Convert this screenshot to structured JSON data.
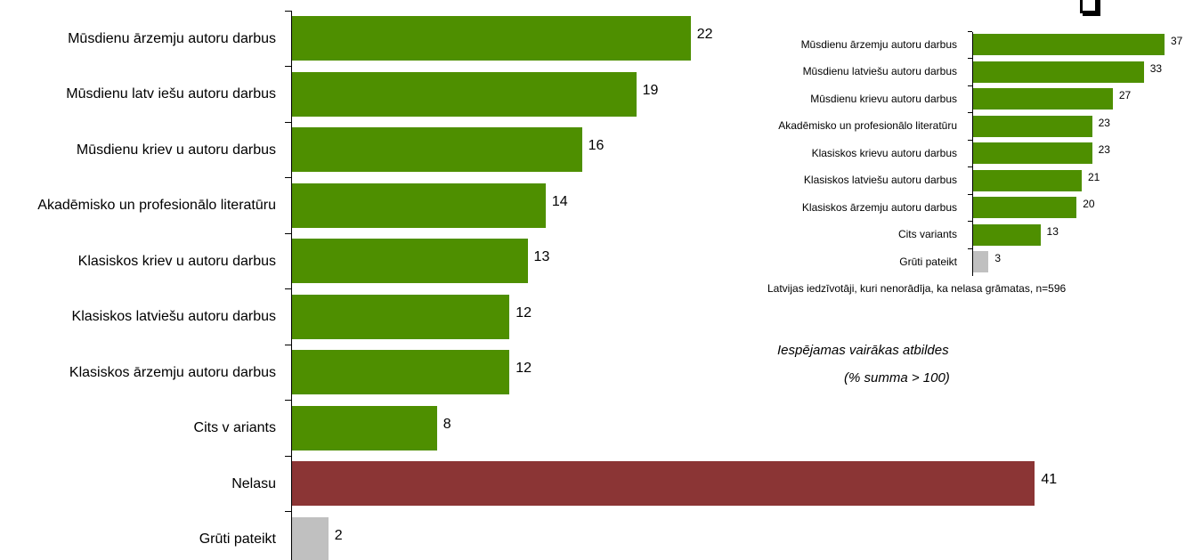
{
  "chart_data": [
    {
      "type": "bar",
      "categories": [
        "Mūsdienu ārzemju autoru darbus",
        "Mūsdienu latv iešu autoru darbus",
        "Mūsdienu kriev u autoru darbus",
        "Akadēmisko un profesionālo literatūru",
        "Klasiskos kriev u autoru darbus",
        "Klasiskos latviešu autoru darbus",
        "Klasiskos ārzemju autoru darbus",
        "Cits v ariants",
        "Nelasu",
        "Grūti pateikt"
      ],
      "values": [
        22,
        19,
        16,
        14,
        13,
        12,
        12,
        8,
        41,
        2
      ],
      "colors": [
        "#4e8f00",
        "#4e8f00",
        "#4e8f00",
        "#4e8f00",
        "#4e8f00",
        "#4e8f00",
        "#4e8f00",
        "#4e8f00",
        "#8b3535",
        "#c0c0c0"
      ],
      "annotations": [
        "Iespējamas vairākas atbildes",
        "(% summa > 100)"
      ]
    },
    {
      "type": "bar",
      "categories": [
        "Mūsdienu ārzemju autoru darbus",
        "Mūsdienu latviešu autoru darbus",
        "Mūsdienu krievu autoru darbus",
        "Akadēmisko un profesionālo literatūru",
        "Klasiskos krievu autoru darbus",
        "Klasiskos latviešu autoru darbus",
        "Klasiskos ārzemju autoru darbus",
        "Cits variants",
        "Grūti pateikt"
      ],
      "values": [
        37,
        33,
        27,
        23,
        23,
        21,
        20,
        13,
        3
      ],
      "colors": [
        "#4e8f00",
        "#4e8f00",
        "#4e8f00",
        "#4e8f00",
        "#4e8f00",
        "#4e8f00",
        "#4e8f00",
        "#4e8f00",
        "#c0c0c0"
      ],
      "note": "Latvijas iedzīvotāji, kuri nenorādīja, ka nelasa grāmatas, n=596"
    }
  ]
}
